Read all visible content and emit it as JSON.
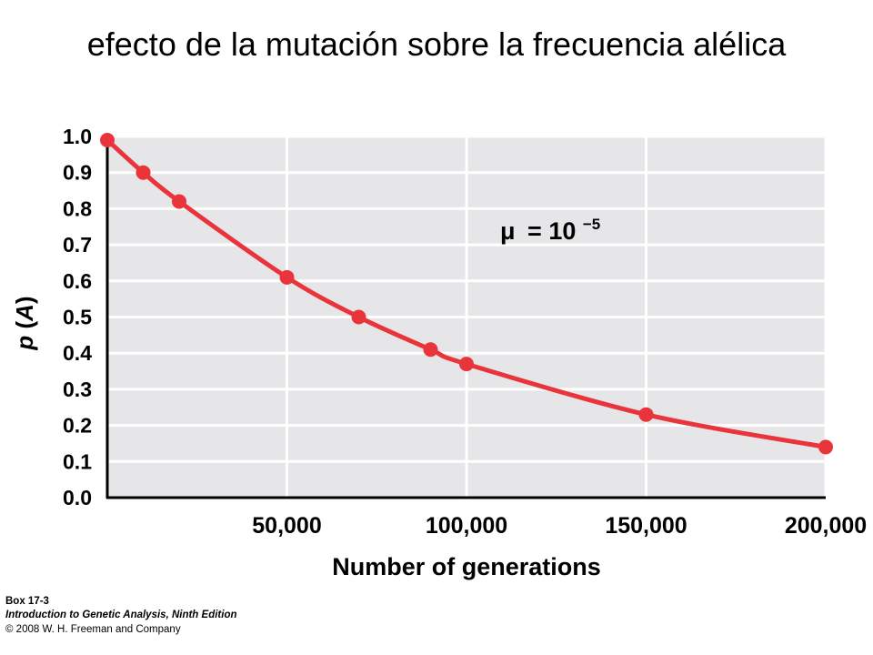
{
  "title": "efecto de la mutación sobre la frecuencia alélica",
  "annotation": {
    "symbol": "μ",
    "equals": "= 10",
    "exponent": "−5"
  },
  "credits": {
    "box": "Box 17-3",
    "book": "Introduction to Genetic Analysis, Ninth Edition",
    "copyright": "© 2008 W. H. Freeman and Company"
  },
  "colors": {
    "plot_background": "#e6e6e8",
    "grid": "#ffffff",
    "series": "#e8343a",
    "axis": "#000000"
  },
  "chart_data": {
    "type": "line",
    "title": "",
    "xlabel": "Number of generations",
    "ylabel": "p (A)",
    "xlim": [
      0,
      200000
    ],
    "ylim": [
      0,
      1.0
    ],
    "grid": true,
    "x_ticks": [
      50000,
      100000,
      150000,
      200000
    ],
    "x_tick_labels": [
      "50,000",
      "100,000",
      "150,000",
      "200,000"
    ],
    "y_ticks": [
      0,
      0.1,
      0.2,
      0.3,
      0.4,
      0.5,
      0.6,
      0.7,
      0.8,
      0.9,
      1.0
    ],
    "y_tick_labels": [
      "0.0",
      "0.1",
      "0.2",
      "0.3",
      "0.4",
      "0.5",
      "0.6",
      "0.7",
      "0.8",
      "0.9",
      "1.0"
    ],
    "series": [
      {
        "x": [
          0,
          10000,
          20000,
          50000,
          70000,
          90000,
          100000,
          150000,
          200000
        ],
        "y": [
          0.99,
          0.9,
          0.82,
          0.61,
          0.5,
          0.41,
          0.37,
          0.23,
          0.14
        ]
      }
    ]
  }
}
